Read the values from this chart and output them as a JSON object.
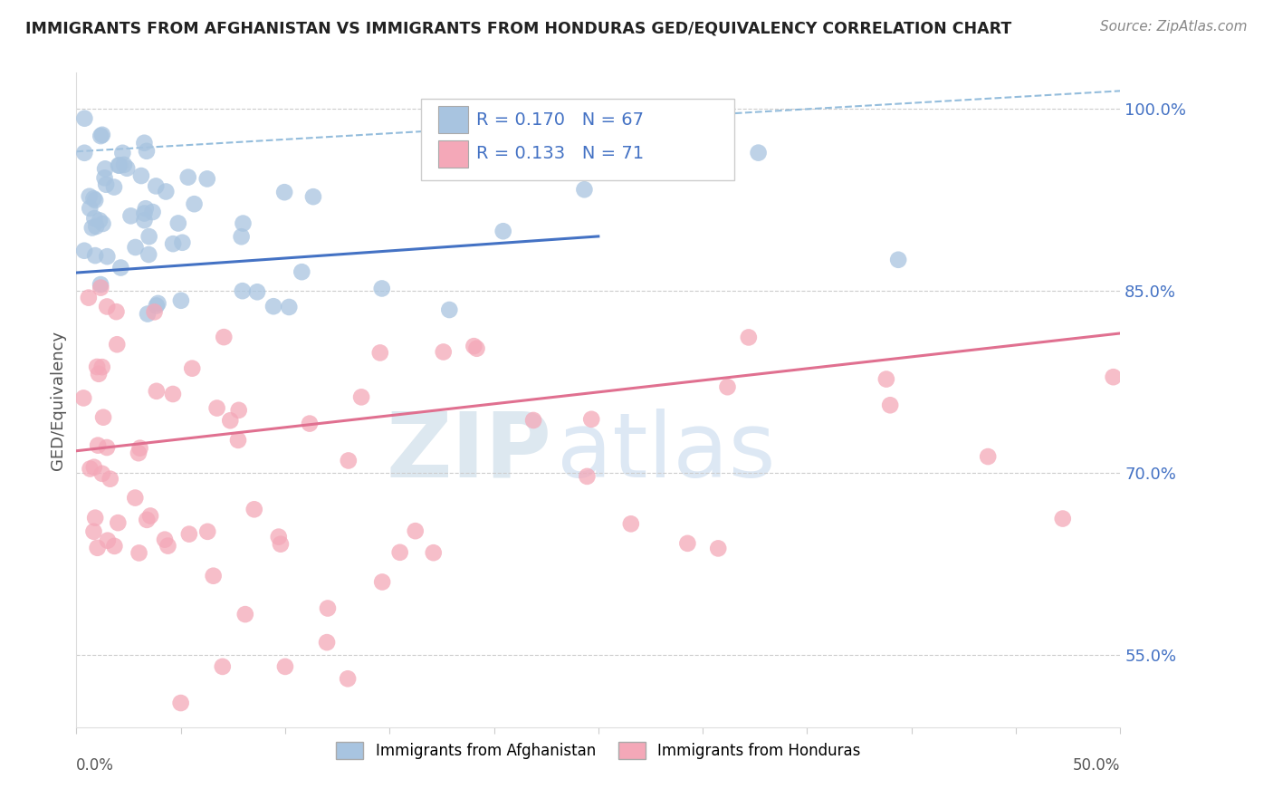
{
  "title": "IMMIGRANTS FROM AFGHANISTAN VS IMMIGRANTS FROM HONDURAS GED/EQUIVALENCY CORRELATION CHART",
  "source": "Source: ZipAtlas.com",
  "ylabel": "GED/Equivalency",
  "xlim": [
    0.0,
    0.5
  ],
  "ylim": [
    0.49,
    1.03
  ],
  "afghanistan_color": "#a8c4e0",
  "honduras_color": "#f4a8b8",
  "afghanistan_line_color": "#4472c4",
  "honduras_line_color": "#e07090",
  "dashed_line_color": "#7aadd4",
  "afghanistan_r": 0.17,
  "afghanistan_n": 67,
  "honduras_r": 0.133,
  "honduras_n": 71,
  "legend_label_1": "Immigrants from Afghanistan",
  "legend_label_2": "Immigrants from Honduras",
  "ytick_positions": [
    0.55,
    0.7,
    0.85,
    1.0
  ],
  "ytick_labels": [
    "55.0%",
    "70.0%",
    "85.0%",
    "100.0%"
  ],
  "grid_lines": [
    0.55,
    0.7,
    0.85,
    1.0
  ],
  "af_trend_x": [
    0.0,
    0.25
  ],
  "af_trend_y": [
    0.865,
    0.895
  ],
  "hn_trend_x": [
    0.0,
    0.5
  ],
  "hn_trend_y": [
    0.718,
    0.815
  ],
  "dashed_trend_x": [
    0.0,
    0.5
  ],
  "dashed_trend_y": [
    0.965,
    1.015
  ],
  "watermark_zip": "ZIP",
  "watermark_atlas": "atlas"
}
